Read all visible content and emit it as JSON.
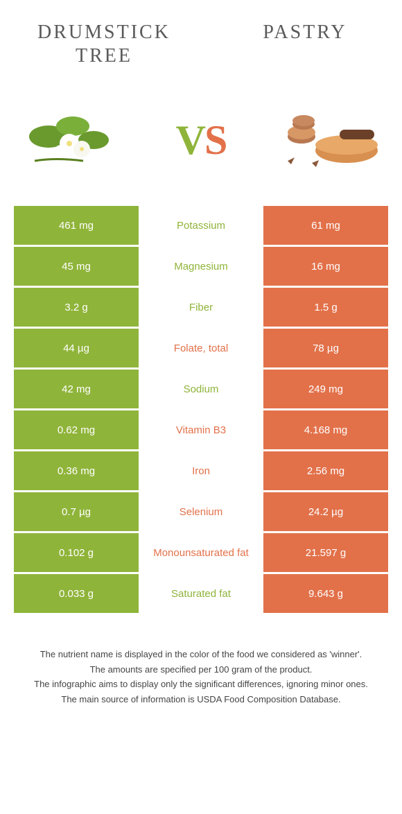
{
  "header": {
    "left_title": "Drumstick tree",
    "right_title": "Pastry"
  },
  "vs": {
    "v": "V",
    "s": "S"
  },
  "colors": {
    "green": "#8fb43a",
    "orange": "#e2714a",
    "text": "#5a5a5a",
    "white": "#ffffff"
  },
  "rows": [
    {
      "left": "461 mg",
      "label": "Potassium",
      "right": "61 mg",
      "winner": "left"
    },
    {
      "left": "45 mg",
      "label": "Magnesium",
      "right": "16 mg",
      "winner": "left"
    },
    {
      "left": "3.2 g",
      "label": "Fiber",
      "right": "1.5 g",
      "winner": "left"
    },
    {
      "left": "44 µg",
      "label": "Folate, total",
      "right": "78 µg",
      "winner": "right"
    },
    {
      "left": "42 mg",
      "label": "Sodium",
      "right": "249 mg",
      "winner": "left"
    },
    {
      "left": "0.62 mg",
      "label": "Vitamin B3",
      "right": "4.168 mg",
      "winner": "right"
    },
    {
      "left": "0.36 mg",
      "label": "Iron",
      "right": "2.56 mg",
      "winner": "right"
    },
    {
      "left": "0.7 µg",
      "label": "Selenium",
      "right": "24.2 µg",
      "winner": "right"
    },
    {
      "left": "0.102 g",
      "label": "Monounsaturated fat",
      "right": "21.597 g",
      "winner": "right"
    },
    {
      "left": "0.033 g",
      "label": "Saturated fat",
      "right": "9.643 g",
      "winner": "left"
    }
  ],
  "footer": {
    "line1": "The nutrient name is displayed in the color of the food we considered as 'winner'.",
    "line2": "The amounts are specified per 100 gram of the product.",
    "line3": "The infographic aims to display only the significant differences, ignoring minor ones.",
    "line4": "The main source of information is USDA Food Composition Database."
  }
}
